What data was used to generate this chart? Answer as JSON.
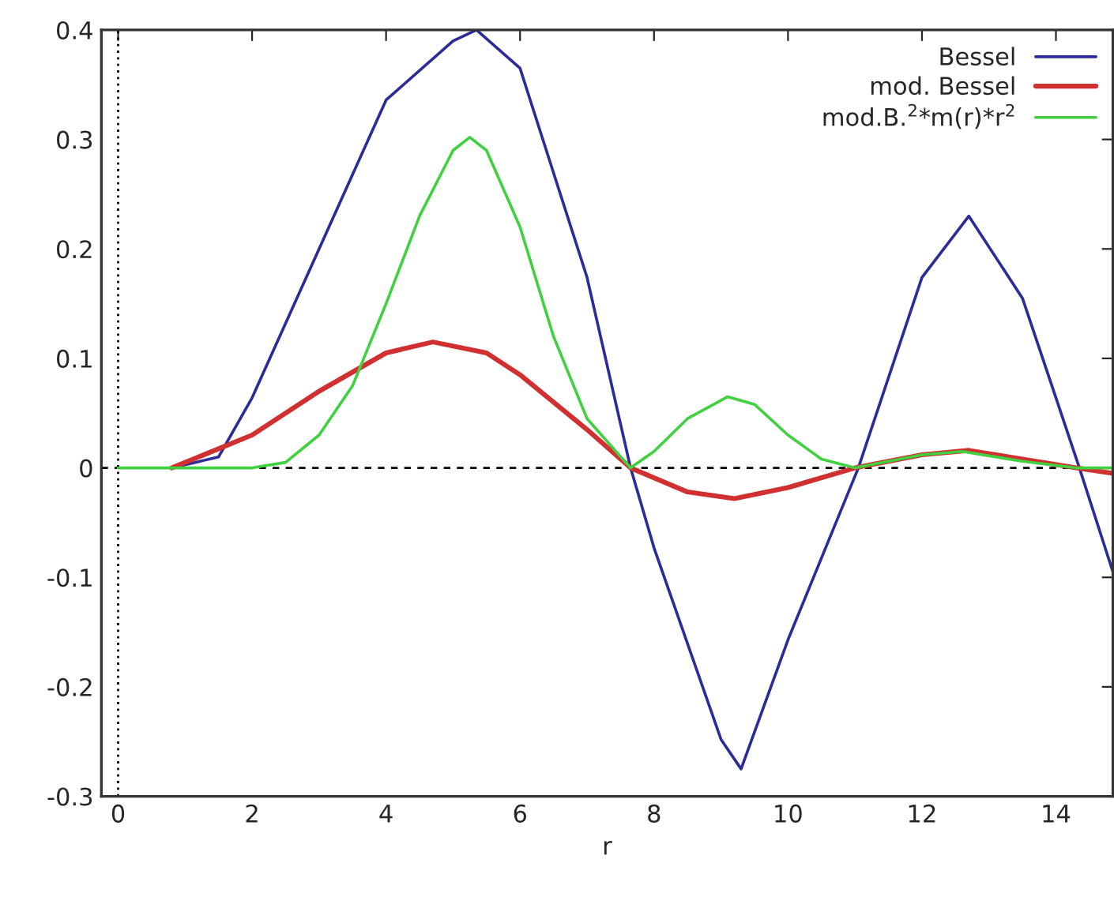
{
  "chart_data": {
    "type": "line",
    "xlabel": "r",
    "xlim": [
      -0.25,
      14.85
    ],
    "ylim": [
      -0.3,
      0.4
    ],
    "xticks": [
      0,
      2,
      4,
      6,
      8,
      10,
      12,
      14
    ],
    "yticks": [
      -0.3,
      -0.2,
      -0.1,
      0,
      0.1,
      0.2,
      0.3,
      0.4
    ],
    "grid": false,
    "legend": "top right",
    "ref_lines": [
      {
        "axis": "y",
        "value": 0,
        "color": "#000000",
        "line_style": "dashed"
      },
      {
        "axis": "x",
        "value": 0,
        "color": "#000000",
        "line_style": "dotted"
      }
    ],
    "series": [
      {
        "name": "Bessel",
        "color": "#2b2b9a",
        "x": [
          0.8,
          1.5,
          2,
          3,
          4,
          5,
          5.35,
          6,
          7,
          7.65,
          8,
          9,
          9.3,
          10,
          11.05,
          12,
          12.7,
          13.5,
          14,
          14.35,
          14.85
        ],
        "values": [
          0,
          0.01,
          0.064,
          0.2,
          0.336,
          0.39,
          0.4,
          0.365,
          0.174,
          0,
          -0.073,
          -0.248,
          -0.275,
          -0.157,
          0,
          0.174,
          0.23,
          0.155,
          0.064,
          0,
          -0.095
        ]
      },
      {
        "name": "mod. Bessel",
        "color": "#d03030",
        "x": [
          0.8,
          2,
          3,
          4,
          4.7,
          5.5,
          6,
          7,
          7.65,
          8.5,
          9.2,
          10,
          11,
          12,
          12.7,
          13.5,
          14.3,
          14.85
        ],
        "values": [
          0,
          0.03,
          0.07,
          0.105,
          0.115,
          0.105,
          0.085,
          0.035,
          0,
          -0.022,
          -0.028,
          -0.018,
          0,
          0.012,
          0.016,
          0.008,
          0,
          -0.005
        ]
      },
      {
        "name": "mod.B.$^{2}$*m(r)*r$^{2}$",
        "color": "#40d040",
        "x": [
          0,
          2,
          2.5,
          3,
          3.5,
          4,
          4.5,
          5,
          5.25,
          5.5,
          6,
          6.5,
          7,
          7.65,
          8,
          8.5,
          9.1,
          9.5,
          10,
          10.5,
          11,
          12,
          12.6,
          13.5,
          14.3,
          14.85
        ],
        "values": [
          0,
          0,
          0.005,
          0.03,
          0.075,
          0.15,
          0.23,
          0.29,
          0.302,
          0.29,
          0.22,
          0.12,
          0.045,
          0,
          0.015,
          0.045,
          0.065,
          0.058,
          0.03,
          0.008,
          0,
          0.012,
          0.015,
          0.006,
          0,
          0
        ]
      }
    ]
  }
}
